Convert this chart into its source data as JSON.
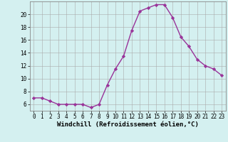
{
  "x": [
    0,
    1,
    2,
    3,
    4,
    5,
    6,
    7,
    8,
    9,
    10,
    11,
    12,
    13,
    14,
    15,
    16,
    17,
    18,
    19,
    20,
    21,
    22,
    23
  ],
  "y": [
    7.0,
    7.0,
    6.5,
    6.0,
    6.0,
    6.0,
    6.0,
    5.5,
    6.0,
    9.0,
    11.5,
    13.5,
    17.5,
    20.5,
    21.0,
    21.5,
    21.5,
    19.5,
    16.5,
    15.0,
    13.0,
    12.0,
    11.5,
    10.5
  ],
  "line_color": "#993399",
  "marker": "D",
  "marker_size": 2.2,
  "bg_color": "#d4f0f0",
  "grid_color": "#aaaaaa",
  "xlabel": "Windchill (Refroidissement éolien,°C)",
  "xlim": [
    -0.5,
    23.5
  ],
  "ylim": [
    5.0,
    22.0
  ],
  "yticks": [
    6,
    8,
    10,
    12,
    14,
    16,
    18,
    20
  ],
  "xticks": [
    0,
    1,
    2,
    3,
    4,
    5,
    6,
    7,
    8,
    9,
    10,
    11,
    12,
    13,
    14,
    15,
    16,
    17,
    18,
    19,
    20,
    21,
    22,
    23
  ],
  "xlabel_fontsize": 6.5,
  "tick_fontsize": 5.5,
  "line_width": 1.0
}
